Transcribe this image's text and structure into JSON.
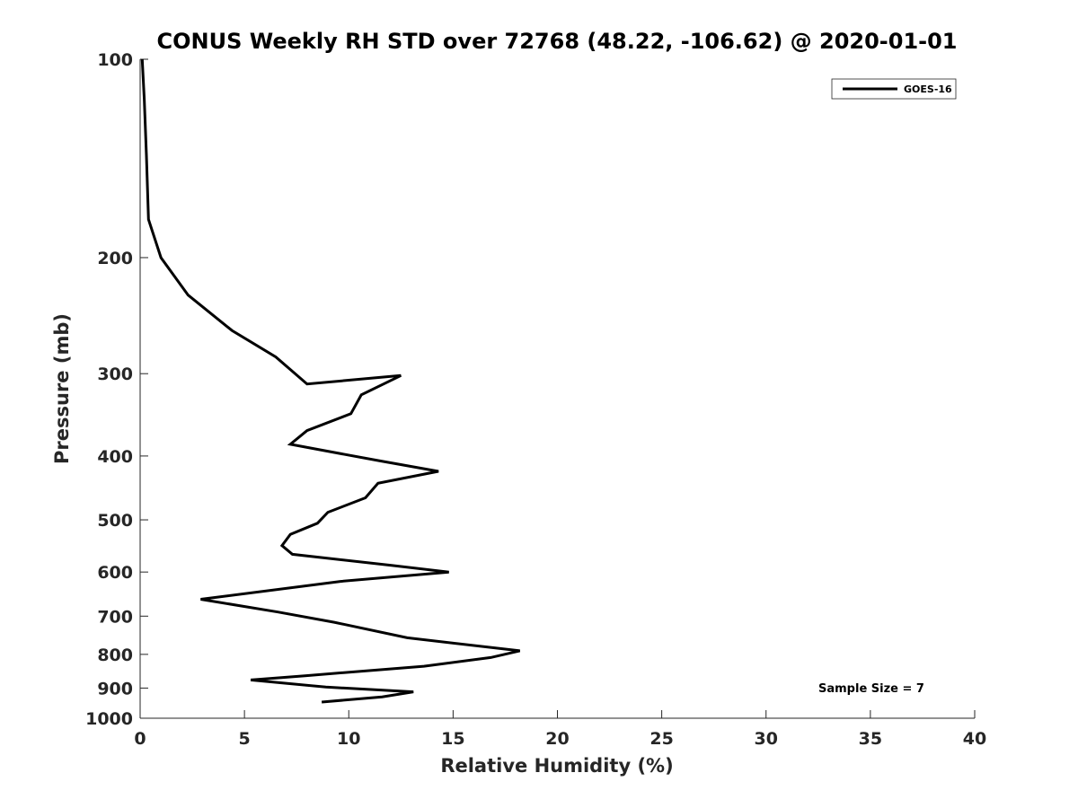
{
  "chart_data": {
    "type": "line",
    "title": "CONUS Weekly RH STD over 72768 (48.22, -106.62) @ 2020-01-01",
    "xlabel": "Relative Humidity (%)",
    "ylabel": "Pressure (mb)",
    "xlim": [
      0,
      40
    ],
    "ylim": [
      100,
      1000
    ],
    "y_scale": "log",
    "y_reversed": true,
    "xticks": [
      0,
      5,
      10,
      15,
      20,
      25,
      30,
      35,
      40
    ],
    "yticks": [
      100,
      200,
      300,
      400,
      500,
      600,
      700,
      800,
      900,
      1000
    ],
    "grid": false,
    "legend_position": "top-right",
    "annotation": "Sample Size = 7",
    "series": [
      {
        "name": "GOES-16",
        "color": "#000000",
        "x": [
          0.1,
          0.2,
          0.3,
          0.4,
          1.0,
          2.3,
          4.4,
          6.5,
          8.0,
          12.5,
          10.6,
          10.1,
          8.0,
          7.2,
          11.5,
          14.3,
          11.4,
          10.8,
          9.0,
          8.5,
          7.2,
          6.8,
          7.3,
          12.0,
          14.8,
          9.6,
          2.9,
          6.6,
          9.3,
          12.8,
          18.2,
          16.8,
          13.6,
          7.9,
          5.3,
          8.9,
          13.1,
          11.6,
          8.7
        ],
        "y": [
          100,
          115,
          140,
          175,
          200,
          228,
          258,
          283,
          311,
          302,
          323,
          345,
          366,
          384,
          407,
          422,
          440,
          463,
          487,
          506,
          526,
          547,
          564,
          586,
          600,
          620,
          660,
          690,
          715,
          755,
          790,
          809,
          834,
          862,
          875,
          897,
          912,
          928,
          945
        ]
      }
    ]
  }
}
